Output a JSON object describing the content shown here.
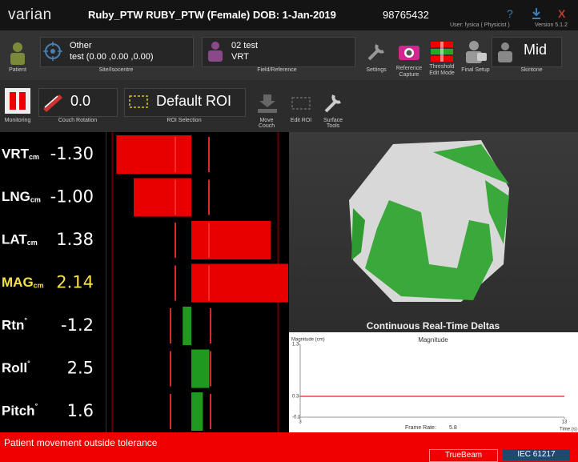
{
  "header": {
    "logo": "varian",
    "title": "Ruby_PTW RUBY_PTW (Female) DOB: 1-Jan-2019",
    "patient_id": "98765432",
    "help": "?",
    "close": "X",
    "user": "User: fysica  ( Physicist )",
    "version": "Version 5.1.2"
  },
  "toolbar1": {
    "patient": "Patient",
    "site": {
      "value": "Other",
      "detail": "test (0.00 ,0.00 ,0.00)",
      "label": "Site/Isocentre"
    },
    "field": {
      "value": "02 test",
      "detail": "VRT",
      "label": "Field/Reference"
    },
    "settings": "Settings",
    "reference_capture": [
      "Reference",
      "Capture"
    ],
    "threshold_edit_mode": [
      "Threshold",
      "Edit Mode"
    ],
    "final_setup": "Final Setup",
    "skintone": {
      "value": "Mid",
      "label": "Skintone"
    }
  },
  "toolbar2": {
    "monitoring": "Monitoring",
    "couch_rotation": {
      "value": "0.0",
      "label": "Couch Rotation"
    },
    "roi_selection": {
      "value": "Default ROI",
      "label": "ROI Selection"
    },
    "move_couch": [
      "Move",
      "Couch"
    ],
    "edit_roi": "Edit ROI",
    "surface_tools": [
      "Surface",
      "Tools"
    ]
  },
  "deltas": [
    {
      "name": "VRT",
      "unit": "cm",
      "unit_position": "sub",
      "label": "-1.30",
      "value": -1.3,
      "kind": "translation",
      "color": "#ffffff",
      "bar_color": "#e80000"
    },
    {
      "name": "LNG",
      "unit": "cm",
      "unit_position": "sub",
      "label": "-1.00",
      "value": -1.0,
      "kind": "translation",
      "color": "#ffffff",
      "bar_color": "#e80000"
    },
    {
      "name": "LAT",
      "unit": "cm",
      "unit_position": "sub",
      "label": "1.38",
      "value": 1.38,
      "kind": "translation",
      "color": "#ffffff",
      "bar_color": "#e80000"
    },
    {
      "name": "MAG",
      "unit": "cm",
      "unit_position": "sub",
      "label": "2.14",
      "value": 2.14,
      "kind": "translation",
      "color": "#f5e04a",
      "bar_color": "#e80000"
    },
    {
      "name": "Rtn",
      "unit": "°",
      "unit_position": "sup",
      "label": "-1.2",
      "value": -1.2,
      "kind": "rotation",
      "color": "#ffffff",
      "bar_color": "#1f9a1f"
    },
    {
      "name": "Roll",
      "unit": "°",
      "unit_position": "sup",
      "label": "2.5",
      "value": 2.5,
      "kind": "rotation",
      "color": "#ffffff",
      "bar_color": "#1f9a1f"
    },
    {
      "name": "Pitch",
      "unit": "°",
      "unit_position": "sup",
      "label": "1.6",
      "value": 1.6,
      "kind": "rotation",
      "color": "#ffffff",
      "bar_color": "#1f9a1f"
    }
  ],
  "graph": {
    "title": "Continuous Real-Time Deltas",
    "y_label": "Magnitude (cm)",
    "series_name": "Magnitude",
    "ylim": [
      -0.1,
      1.3
    ],
    "yticks": [
      1.3,
      0.3,
      -0.1
    ],
    "xlim": [
      3,
      13
    ],
    "xticks": [
      3,
      13
    ],
    "x_label": "Time (s)",
    "threshold": 0.3,
    "threshold_color": "#e02020",
    "frame_rate_label": "Frame Rate:",
    "frame_rate": "5.8"
  },
  "status": {
    "message": "Patient movement outside tolerance",
    "machine": "TrueBeam",
    "coordinates": "IEC 61217"
  }
}
